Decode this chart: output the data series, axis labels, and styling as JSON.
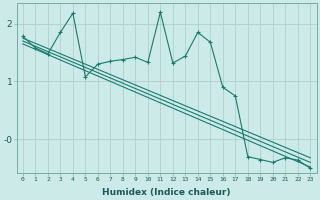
{
  "xlabel": "Humidex (Indice chaleur)",
  "bg_color": "#cceae8",
  "plot_bg_color": "#cceae8",
  "line_color": "#1a7a6e",
  "grid_color": "#b0d0ce",
  "spine_color": "#7aaba8",
  "xlim": [
    -0.5,
    23.5
  ],
  "ylim": [
    -0.58,
    2.35
  ],
  "yticks": [
    2,
    1,
    0
  ],
  "ytick_labels": [
    "2",
    "1",
    "-0"
  ],
  "xticks": [
    0,
    1,
    2,
    3,
    4,
    5,
    6,
    7,
    8,
    9,
    10,
    11,
    12,
    13,
    14,
    15,
    16,
    17,
    18,
    19,
    20,
    21,
    22,
    23
  ],
  "series_jagged_x": [
    0,
    1,
    2,
    3,
    4,
    5,
    6,
    7,
    8,
    9,
    10,
    11,
    12,
    13,
    14,
    15,
    16,
    17,
    18,
    19,
    20,
    21,
    22,
    23
  ],
  "series_jagged_y": [
    1.78,
    1.58,
    1.48,
    1.85,
    2.18,
    1.08,
    1.3,
    1.35,
    1.38,
    1.42,
    1.33,
    2.2,
    1.32,
    1.44,
    1.85,
    1.68,
    0.9,
    0.75,
    -0.3,
    -0.35,
    -0.4,
    -0.32,
    -0.36,
    -0.5
  ],
  "trend1_x": [
    0,
    23
  ],
  "trend1_y": [
    1.75,
    -0.32
  ],
  "trend2_x": [
    0,
    23
  ],
  "trend2_y": [
    1.7,
    -0.4
  ],
  "trend3_x": [
    0,
    23
  ],
  "trend3_y": [
    1.65,
    -0.48
  ]
}
